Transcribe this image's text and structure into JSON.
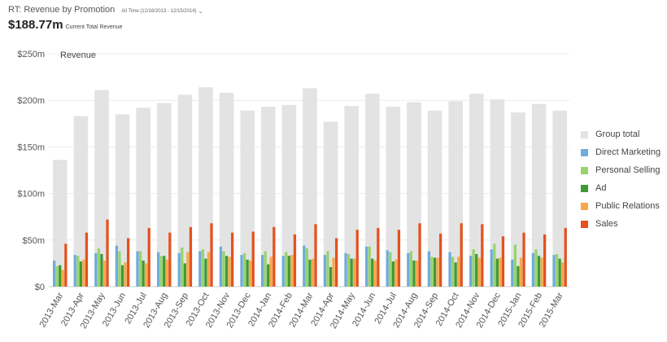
{
  "header": {
    "title": "RT: Revenue by Promotion",
    "date_range": "All Time (12/16/2013 - 12/15/2014)",
    "total_value": "$188.77m",
    "total_label": "Current Total Revenue"
  },
  "chart_data": {
    "type": "bar",
    "title": "Revenue",
    "xlabel": "",
    "ylabel": "",
    "ylim": [
      0,
      250
    ],
    "yticks": [
      0,
      50,
      100,
      150,
      200,
      250
    ],
    "ytick_labels": [
      "$0",
      "$50m",
      "$100m",
      "$150m",
      "$200m",
      "$250m"
    ],
    "grid": true,
    "legend_position": "right",
    "categories": [
      "2013-Mar",
      "2013-Apr",
      "2013-May",
      "2013-Jun",
      "2013-Jul",
      "2013-Aug",
      "2013-Sep",
      "2013-Oct",
      "2013-Nov",
      "2013-Dec",
      "2014-Jan",
      "2014-Feb",
      "2014-Mar",
      "2014-Apr",
      "2014-May",
      "2014-Jun",
      "2014-Jul",
      "2014-Aug",
      "2014-Sep",
      "2014-Oct",
      "2014-Nov",
      "2014-Dec",
      "2015-Jan",
      "2015-Feb",
      "2015-Mar"
    ],
    "background_series": {
      "name": "Group total",
      "color": "#e3e3e3",
      "values": [
        136,
        183,
        211,
        185,
        192,
        197,
        206,
        214,
        208,
        189,
        193,
        195,
        213,
        177,
        194,
        207,
        193,
        198,
        189,
        199,
        207,
        201,
        187,
        196,
        189
      ]
    },
    "series": [
      {
        "name": "Direct Marketing",
        "color": "#6fabdb",
        "values": [
          28,
          34,
          36,
          44,
          38,
          37,
          36,
          38,
          43,
          34,
          34,
          33,
          44,
          34,
          36,
          43,
          39,
          36,
          38,
          37,
          33,
          40,
          29,
          36,
          34
        ]
      },
      {
        "name": "Personal Selling",
        "color": "#98d36d",
        "values": [
          22,
          33,
          41,
          38,
          38,
          33,
          42,
          40,
          38,
          36,
          38,
          37,
          41,
          38,
          35,
          43,
          37,
          38,
          32,
          32,
          40,
          46,
          45,
          40,
          35
        ]
      },
      {
        "name": "Ad",
        "color": "#3f9a35",
        "values": [
          23,
          27,
          35,
          23,
          28,
          33,
          25,
          30,
          33,
          29,
          24,
          33,
          29,
          21,
          30,
          30,
          27,
          28,
          31,
          26,
          35,
          30,
          22,
          33,
          30
        ]
      },
      {
        "name": "Public Relations",
        "color": "#f7a848",
        "values": [
          18,
          29,
          28,
          26,
          25,
          29,
          37,
          37,
          32,
          28,
          32,
          34,
          30,
          31,
          30,
          28,
          29,
          28,
          31,
          32,
          31,
          31,
          31,
          31,
          26
        ]
      },
      {
        "name": "Sales",
        "color": "#e4521f",
        "values": [
          46,
          58,
          72,
          52,
          63,
          58,
          64,
          68,
          58,
          59,
          64,
          56,
          67,
          52,
          61,
          63,
          61,
          68,
          57,
          68,
          67,
          54,
          58,
          56,
          63
        ]
      }
    ]
  },
  "legend": {
    "items": [
      {
        "label": "Group total",
        "color": "#e3e3e3"
      },
      {
        "label": "Direct Marketing",
        "color": "#6fabdb"
      },
      {
        "label": "Personal Selling",
        "color": "#98d36d"
      },
      {
        "label": "Ad",
        "color": "#3f9a35"
      },
      {
        "label": "Public Relations",
        "color": "#f7a848"
      },
      {
        "label": "Sales",
        "color": "#e4521f"
      }
    ]
  }
}
